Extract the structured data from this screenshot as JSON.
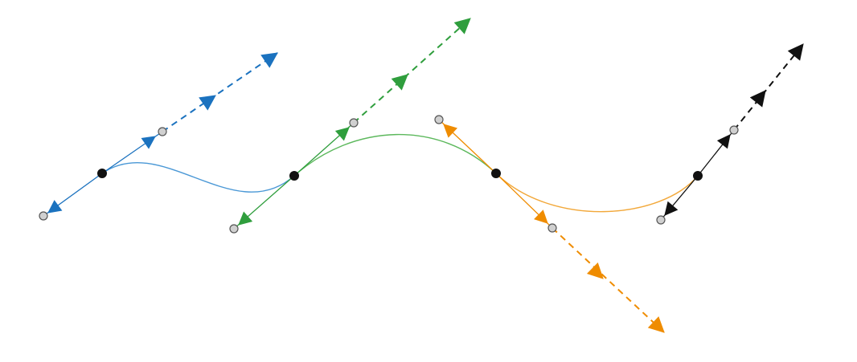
{
  "diagram": {
    "type": "spline-tangent-diagram",
    "background": "#ffffff",
    "segments": [
      {
        "name": "blue-segment",
        "color": "#4a98d6",
        "from": 0,
        "to": 1
      },
      {
        "name": "green-segment",
        "color": "#5cb85c",
        "from": 1,
        "to": 2
      },
      {
        "name": "orange-segment",
        "color": "#f2a83a",
        "from": 2,
        "to": 3
      }
    ],
    "control_points": [
      {
        "name": "point-1",
        "color": "#1b72bf",
        "knot_color": "#111111",
        "handle_color": "#d0d0d0",
        "arrow_icon": "triangle-arrow-icon"
      },
      {
        "name": "point-2",
        "color": "#2f9e3d",
        "knot_color": "#111111",
        "handle_color": "#d0d0d0",
        "arrow_icon": "triangle-arrow-icon"
      },
      {
        "name": "point-3",
        "color": "#ef8c00",
        "knot_color": "#111111",
        "handle_color": "#d0d0d0",
        "arrow_icon": "triangle-arrow-icon"
      },
      {
        "name": "point-4",
        "color": "#111111",
        "knot_color": "#111111",
        "handle_color": "#d0d0d0",
        "arrow_icon": "triangle-arrow-icon"
      }
    ]
  }
}
